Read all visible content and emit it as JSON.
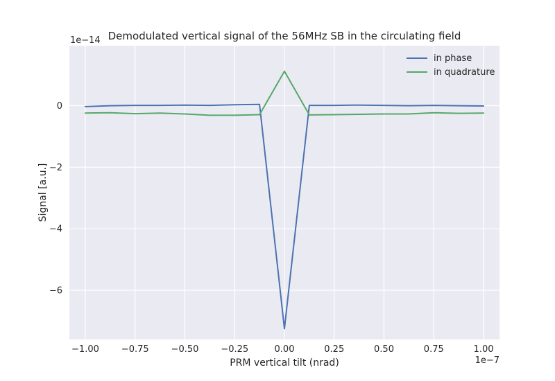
{
  "chart_data": {
    "type": "line",
    "title": "Demodulated vertical signal of the 56MHz SB in the circulating field",
    "xlabel": "PRM vertical tilt (nrad)",
    "ylabel": "Signal [a.u.]",
    "x_offset_label": "1e−7",
    "y_offset_label": "1e−14",
    "xlim": [
      -1.08,
      1.08
    ],
    "ylim": [
      -7.6,
      1.95
    ],
    "x_ticks": [
      -1.0,
      -0.75,
      -0.5,
      -0.25,
      0.0,
      0.25,
      0.5,
      0.75,
      1.0
    ],
    "x_tick_labels": [
      "−1.00",
      "−0.75",
      "−0.50",
      "−0.25",
      "0.00",
      "0.25",
      "0.50",
      "0.75",
      "1.00"
    ],
    "y_ticks": [
      -6,
      -4,
      -2,
      0
    ],
    "y_tick_labels": [
      "−6",
      "−4",
      "−2",
      "0"
    ],
    "grid": true,
    "legend_position": "top-right",
    "x": [
      -1.0,
      -0.875,
      -0.75,
      -0.625,
      -0.5,
      -0.375,
      -0.25,
      -0.125,
      0.0,
      0.125,
      0.25,
      0.375,
      0.5,
      0.625,
      0.75,
      0.875,
      1.0
    ],
    "series": [
      {
        "name": "in phase",
        "color": "#4c72b0",
        "values": [
          -0.03,
          0.0,
          0.01,
          0.01,
          0.02,
          0.01,
          0.03,
          0.04,
          -7.25,
          0.01,
          0.01,
          0.02,
          0.01,
          0.0,
          0.01,
          0.0,
          -0.01
        ]
      },
      {
        "name": "in quadrature",
        "color": "#55a868",
        "values": [
          -0.24,
          -0.23,
          -0.26,
          -0.24,
          -0.27,
          -0.31,
          -0.31,
          -0.29,
          1.12,
          -0.3,
          -0.29,
          -0.28,
          -0.27,
          -0.27,
          -0.23,
          -0.25,
          -0.24
        ]
      }
    ]
  }
}
